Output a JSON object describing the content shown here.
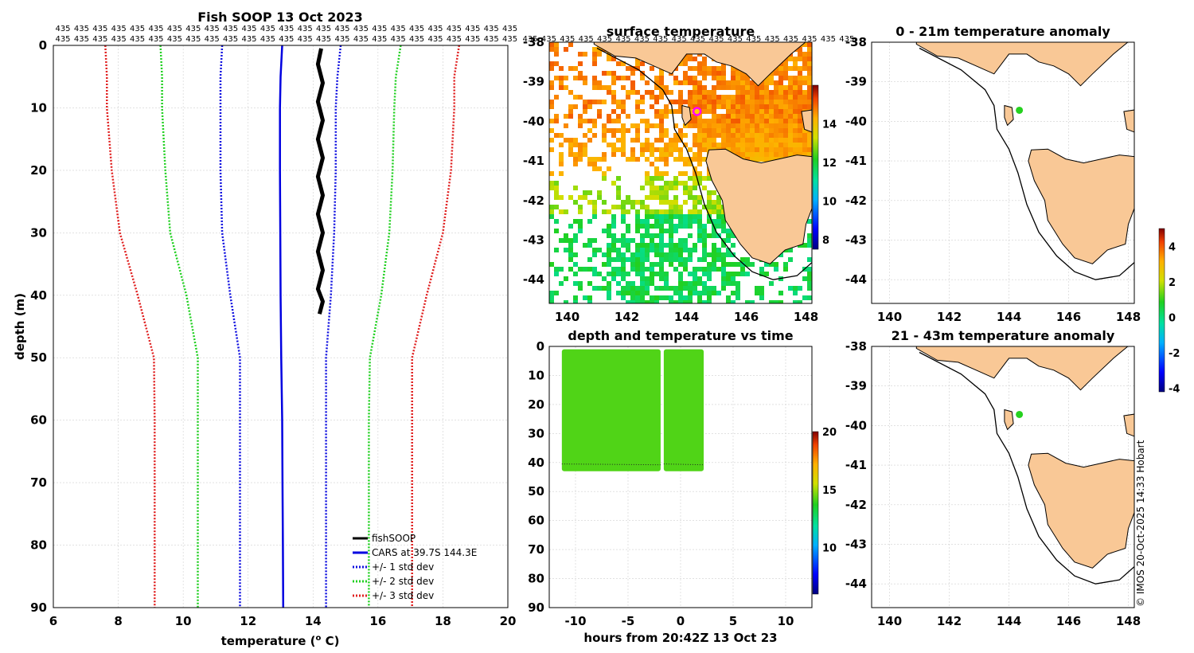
{
  "figure": {
    "credit": "© IMOS 20-Oct-2025 14:33 Hobart",
    "colors": {
      "land": "#f9c896",
      "coast": "#000000",
      "grid": "#d0d0d0",
      "fish": "#000000",
      "cars": "#0000e0",
      "std1": "#1010e0",
      "std2": "#20d020",
      "std3": "#e02020",
      "marker": "#ff00ff",
      "dot": "#aaee00"
    }
  },
  "chart_data": [
    {
      "type": "line",
      "name": "profile",
      "title": "Fish SOOP 13 Oct 2023",
      "xlabel": "temperature (",
      "xlabel_sup": "o",
      "xlabel_tail": " C)",
      "ylabel": "depth (m)",
      "xlim": [
        6,
        20
      ],
      "ylim": [
        90,
        0
      ],
      "xticks": [
        6,
        8,
        10,
        12,
        14,
        16,
        18,
        20
      ],
      "yticks": [
        0,
        10,
        20,
        30,
        40,
        50,
        60,
        70,
        80,
        90
      ],
      "top_label": "435",
      "top_label_rows": 2,
      "top_label_count": 25,
      "depth": [
        0,
        5,
        10,
        20,
        30,
        40,
        50,
        60,
        70,
        80,
        90
      ],
      "series": [
        {
          "name": "fishSOOP",
          "style": "thick",
          "color_key": "fish",
          "x": [
            14.25,
            14.15,
            14.3,
            14.15,
            14.3,
            14.15,
            14.3,
            14.15,
            14.3,
            14.15,
            14.3,
            14.15,
            14.3,
            14.15,
            14.3,
            14.2
          ],
          "y": [
            0.5,
            3,
            6,
            9,
            12,
            15,
            18,
            21,
            24,
            27,
            30,
            33,
            36,
            39,
            41,
            43
          ]
        },
        {
          "name": "CARS at 39.7S 144.3E",
          "style": "solid",
          "color_key": "cars",
          "x": [
            13.05,
            13.0,
            12.98,
            12.98,
            12.99,
            13.0,
            13.02,
            13.05,
            13.06,
            13.07,
            13.08
          ]
        },
        {
          "name": "+/- 1 std dev",
          "style": "dotted",
          "color_key": "std1",
          "lower": [
            11.2,
            11.15,
            11.15,
            11.15,
            11.2,
            11.45,
            11.75,
            11.75,
            11.75,
            11.75,
            11.75
          ],
          "upper": [
            14.85,
            14.75,
            14.7,
            14.7,
            14.65,
            14.55,
            14.4,
            14.4,
            14.4,
            14.4,
            14.4
          ]
        },
        {
          "name": "+/- 2 std dev",
          "style": "dotted",
          "color_key": "std2",
          "lower": [
            9.3,
            9.35,
            9.35,
            9.45,
            9.6,
            10.1,
            10.45,
            10.45,
            10.45,
            10.45,
            10.45
          ],
          "upper": [
            16.7,
            16.55,
            16.5,
            16.45,
            16.35,
            16.1,
            15.75,
            15.72,
            15.72,
            15.72,
            15.72
          ]
        },
        {
          "name": "+/- 3 std dev",
          "style": "dotted",
          "color_key": "std3",
          "lower": [
            7.6,
            7.65,
            7.65,
            7.8,
            8.05,
            8.6,
            9.1,
            9.12,
            9.12,
            9.12,
            9.12
          ],
          "upper": [
            18.5,
            18.35,
            18.35,
            18.25,
            18.0,
            17.5,
            17.05,
            17.05,
            17.05,
            17.05,
            17.05
          ]
        }
      ]
    },
    {
      "type": "heatmap",
      "name": "sst",
      "title": "surface temperature",
      "xlim": [
        139.4,
        148.2
      ],
      "ylim": [
        -44.6,
        -38
      ],
      "xticks": [
        140,
        142,
        144,
        146,
        148
      ],
      "yticks": [
        -38,
        -39,
        -40,
        -41,
        -42,
        -43,
        -44
      ],
      "colorbar": {
        "min": 7.5,
        "max": 16,
        "ticks": [
          8,
          10,
          12,
          14
        ]
      },
      "marker": {
        "lon": 144.35,
        "lat": -39.75
      }
    },
    {
      "type": "scatter",
      "name": "depth_time",
      "title": "depth and temperature vs time",
      "xlabel": "hours from 20:42Z 13 Oct 23",
      "xlim": [
        -12.5,
        12.5
      ],
      "ylim": [
        90,
        0
      ],
      "xticks": [
        -10,
        -5,
        0,
        5,
        10
      ],
      "yticks": [
        0,
        10,
        20,
        30,
        40,
        50,
        60,
        70,
        80,
        90
      ],
      "blocks": [
        {
          "t_start": -11.3,
          "t_end": -1.9,
          "depth_min": 1,
          "depth_max": 43,
          "temperature": 14.2
        },
        {
          "t_start": -1.6,
          "t_end": 2.2,
          "depth_min": 1,
          "depth_max": 43,
          "temperature": 14.2
        }
      ],
      "colorbar": {
        "min": 6,
        "max": 20,
        "ticks": [
          10,
          15,
          20
        ]
      }
    },
    {
      "type": "scatter",
      "name": "anom_shallow",
      "title": "0 - 21m temperature anomaly",
      "xlim": [
        139.4,
        148.2
      ],
      "ylim": [
        -44.6,
        -38
      ],
      "xticks": [
        140,
        142,
        144,
        146,
        148
      ],
      "yticks": [
        -38,
        -39,
        -40,
        -41,
        -42,
        -43,
        -44
      ],
      "points": [
        {
          "lon": 144.35,
          "lat": -39.72,
          "anomaly": 0.9
        }
      ]
    },
    {
      "type": "scatter",
      "name": "anom_deep",
      "title": "21 - 43m temperature anomaly",
      "xlim": [
        139.4,
        148.2
      ],
      "ylim": [
        -44.6,
        -38
      ],
      "xticks": [
        140,
        142,
        144,
        146,
        148
      ],
      "yticks": [
        -38,
        -39,
        -40,
        -41,
        -42,
        -43,
        -44
      ],
      "points": [
        {
          "lon": 144.35,
          "lat": -39.72,
          "anomaly": 0.9
        }
      ],
      "colorbar": {
        "min": -4.2,
        "max": 5.0,
        "ticks": [
          -4,
          -2,
          0,
          2,
          4
        ]
      }
    }
  ]
}
